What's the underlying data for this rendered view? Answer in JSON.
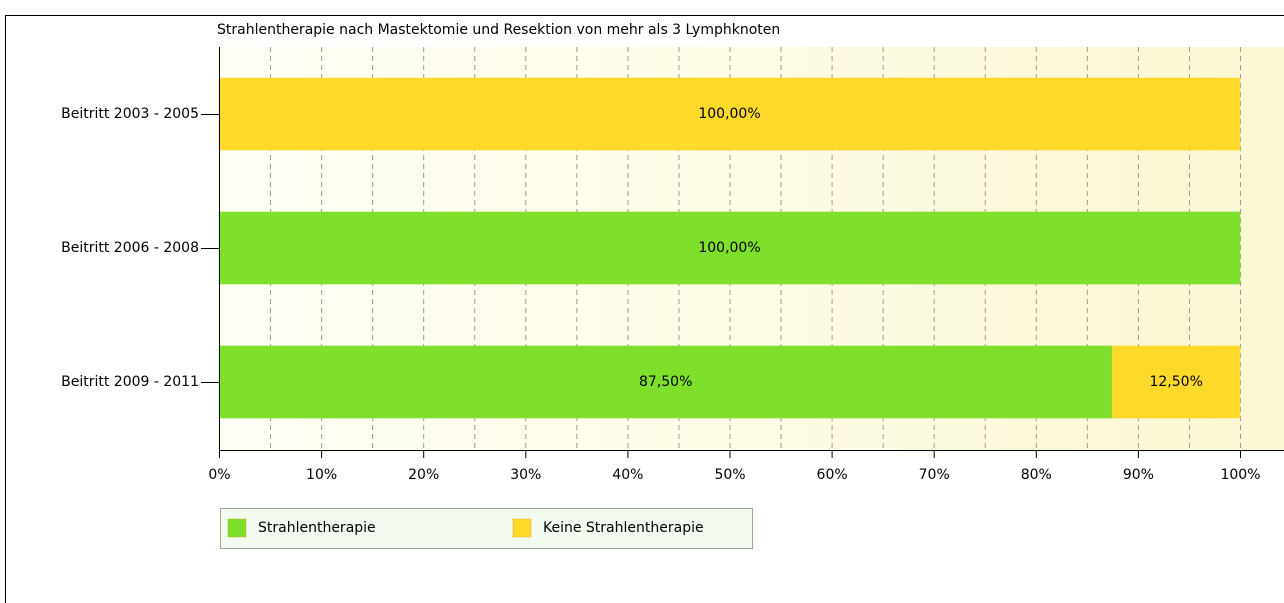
{
  "chart_data": {
    "type": "stacked_barh",
    "title": "Strahlentherapie nach Mastektomie und Resektion von mehr als 3 Lymphknoten",
    "categories": [
      "Beitritt 2003 - 2005",
      "Beitritt 2006 - 2008",
      "Beitritt 2009 - 2011"
    ],
    "series": [
      {
        "name": "Strahlentherapie",
        "color": "#7ee02a",
        "values": [
          0,
          100,
          87.5
        ],
        "value_labels": [
          null,
          "100,00%",
          "87,50%"
        ]
      },
      {
        "name": "Keine Strahlentherapie",
        "color": "#ffd92a",
        "values": [
          100,
          0,
          12.5
        ],
        "value_labels": [
          "100,00%",
          null,
          "12,50%"
        ]
      }
    ],
    "xlim": [
      0,
      100
    ],
    "xticks": [
      {
        "value": 0,
        "label": "0%"
      },
      {
        "value": 10,
        "label": "10%"
      },
      {
        "value": 20,
        "label": "20%"
      },
      {
        "value": 30,
        "label": "30%"
      },
      {
        "value": 40,
        "label": "40%"
      },
      {
        "value": 50,
        "label": "50%"
      },
      {
        "value": 60,
        "label": "60%"
      },
      {
        "value": 70,
        "label": "70%"
      },
      {
        "value": 80,
        "label": "80%"
      },
      {
        "value": 90,
        "label": "90%"
      },
      {
        "value": 100,
        "label": "100%"
      }
    ],
    "minor_xticks": [
      5,
      15,
      25,
      35,
      45,
      55,
      65,
      75,
      85,
      95
    ],
    "grid": true,
    "legend": "bottom-left"
  }
}
